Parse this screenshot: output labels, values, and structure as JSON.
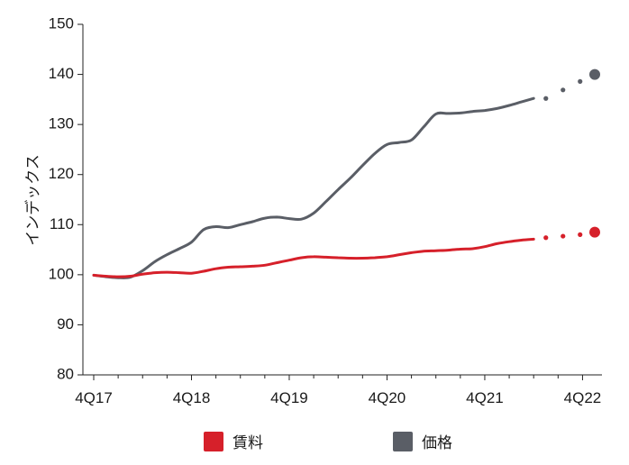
{
  "chart_data": {
    "type": "line",
    "ylabel": "インデックス",
    "xlabel": "",
    "ylim": [
      80,
      150
    ],
    "yticks": [
      80,
      90,
      100,
      110,
      120,
      130,
      140,
      150
    ],
    "x_tick_labels": [
      "4Q17",
      "4Q18",
      "4Q19",
      "4Q20",
      "4Q21",
      "4Q22"
    ],
    "x_tick_positions": [
      0,
      4,
      8,
      12,
      16,
      20
    ],
    "grid": false,
    "legend_position": "bottom",
    "series": [
      {
        "name": "賃料",
        "color": "#d6202a",
        "x": [
          0,
          0.5,
          1,
          1.5,
          2,
          2.5,
          3,
          3.5,
          4,
          4.5,
          5,
          5.5,
          6,
          6.5,
          7,
          7.5,
          8,
          8.5,
          9,
          9.5,
          10,
          10.5,
          11,
          11.5,
          12,
          12.5,
          13,
          13.5,
          14,
          14.5,
          15,
          15.5,
          16,
          16.5,
          17,
          17.5,
          18
        ],
        "values": [
          99.9,
          99.7,
          99.6,
          99.7,
          100.1,
          100.4,
          100.5,
          100.4,
          100.3,
          100.7,
          101.2,
          101.5,
          101.6,
          101.7,
          101.9,
          102.4,
          102.9,
          103.4,
          103.6,
          103.5,
          103.4,
          103.3,
          103.3,
          103.4,
          103.6,
          104.0,
          104.4,
          104.7,
          104.8,
          104.9,
          105.1,
          105.2,
          105.6,
          106.2,
          106.6,
          106.9,
          107.1
        ],
        "projection": {
          "x": [
            18.5,
            19.2,
            19.9
          ],
          "values": [
            107.4,
            107.7,
            108.0
          ]
        },
        "endpoint": {
          "x": 20.5,
          "value": 108.5
        }
      },
      {
        "name": "価格",
        "color": "#5a5e66",
        "x": [
          0,
          0.5,
          1,
          1.5,
          2,
          2.5,
          3,
          3.5,
          4,
          4.5,
          5,
          5.5,
          6,
          6.5,
          7,
          7.5,
          8,
          8.5,
          9,
          9.5,
          10,
          10.5,
          11,
          11.5,
          12,
          12.5,
          13,
          13.5,
          14,
          14.5,
          15,
          15.5,
          16,
          16.5,
          17,
          17.5,
          18
        ],
        "values": [
          99.9,
          99.6,
          99.4,
          99.5,
          100.8,
          102.6,
          104.0,
          105.2,
          106.5,
          109.0,
          109.6,
          109.4,
          110.0,
          110.6,
          111.3,
          111.5,
          111.2,
          111.1,
          112.3,
          114.6,
          117.0,
          119.3,
          121.8,
          124.2,
          126.0,
          126.4,
          126.9,
          129.5,
          132.1,
          132.2,
          132.3,
          132.6,
          132.8,
          133.2,
          133.8,
          134.5,
          135.2
        ],
        "projection": {
          "x": [
            18.5,
            19.2,
            19.9
          ],
          "values": [
            135.2,
            136.9,
            138.6
          ]
        },
        "endpoint": {
          "x": 20.5,
          "value": 140.0
        }
      }
    ]
  }
}
